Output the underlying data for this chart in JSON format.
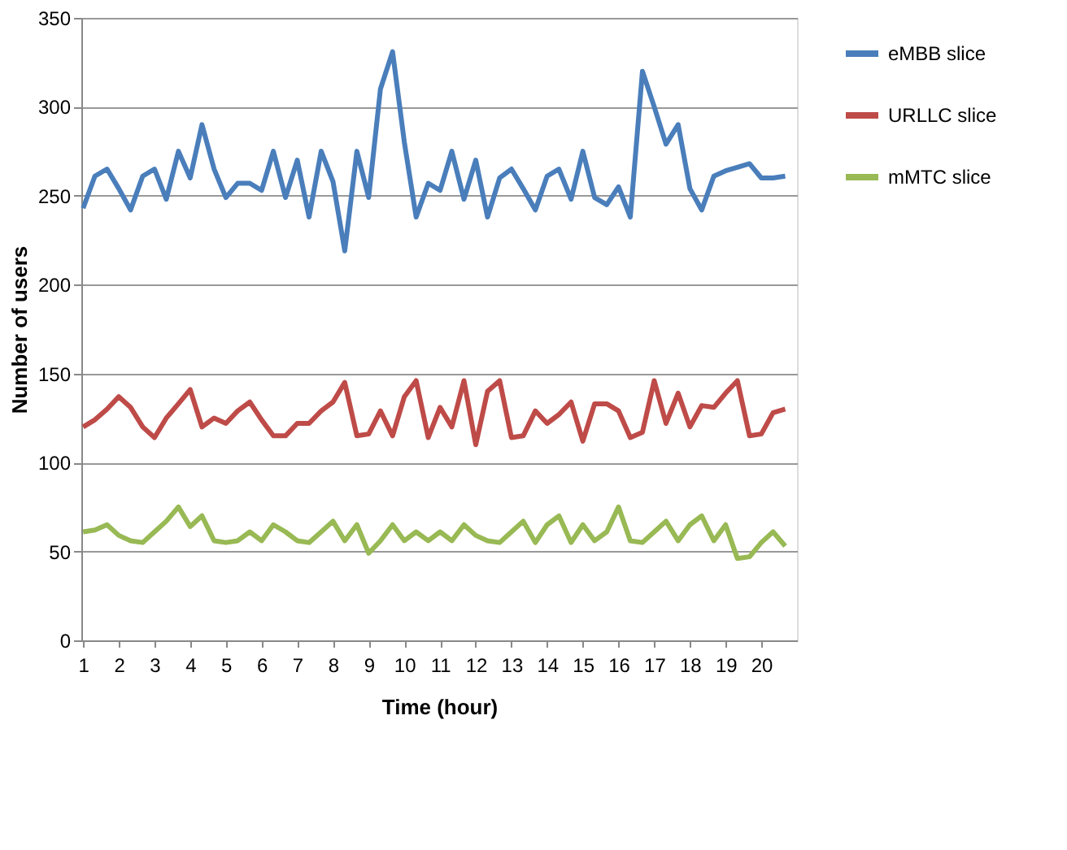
{
  "chart_data": {
    "type": "line",
    "xlabel": "Time (hour)",
    "ylabel": "Number of users",
    "x": [
      1,
      1.33,
      1.67,
      2,
      2.33,
      2.67,
      3,
      3.33,
      3.67,
      4,
      4.33,
      4.67,
      5,
      5.33,
      5.67,
      6,
      6.33,
      6.67,
      7,
      7.33,
      7.67,
      8,
      8.33,
      8.67,
      9,
      9.33,
      9.67,
      10,
      10.33,
      10.67,
      11,
      11.33,
      11.67,
      12,
      12.33,
      12.67,
      13,
      13.33,
      13.67,
      14,
      14.33,
      14.67,
      15,
      15.33,
      15.67,
      16,
      16.33,
      16.67,
      17,
      17.33,
      17.67,
      18,
      18.33,
      18.67,
      19,
      19.33,
      19.67,
      20,
      20.33,
      20.67
    ],
    "series": [
      {
        "name": "eMBB slice",
        "color": "#4a7ebb",
        "values": [
          243,
          261,
          265,
          254,
          242,
          261,
          265,
          248,
          275,
          260,
          290,
          265,
          249,
          257,
          257,
          253,
          275,
          249,
          270,
          238,
          275,
          258,
          219,
          275,
          249,
          310,
          331,
          280,
          238,
          257,
          253,
          275,
          248,
          270,
          238,
          260,
          265,
          254,
          242,
          261,
          265,
          248,
          275,
          249,
          245,
          255,
          238,
          320,
          300,
          279,
          290,
          254,
          242,
          261,
          264,
          266,
          268,
          260,
          260,
          261
        ]
      },
      {
        "name": "URLLC slice",
        "color": "#be4b48",
        "values": [
          120,
          124,
          130,
          137,
          131,
          120,
          114,
          125,
          133,
          141,
          120,
          125,
          122,
          129,
          134,
          124,
          115,
          115,
          122,
          122,
          129,
          134,
          145,
          115,
          116,
          129,
          115,
          137,
          146,
          114,
          131,
          120,
          146,
          110,
          140,
          146,
          114,
          115,
          129,
          122,
          127,
          134,
          112,
          133,
          133,
          129,
          114,
          117,
          146,
          122,
          139,
          120,
          132,
          131,
          139,
          146,
          115,
          116,
          128,
          130
        ]
      },
      {
        "name": "mMTC slice",
        "color": "#98b954",
        "values": [
          61,
          62,
          65,
          59,
          56,
          55,
          61,
          67,
          75,
          64,
          70,
          56,
          55,
          56,
          61,
          56,
          65,
          61,
          56,
          55,
          61,
          67,
          56,
          65,
          49,
          56,
          65,
          56,
          61,
          56,
          61,
          56,
          65,
          59,
          56,
          55,
          61,
          67,
          55,
          65,
          70,
          55,
          65,
          56,
          61,
          75,
          56,
          55,
          61,
          67,
          56,
          65,
          70,
          56,
          65,
          46,
          47,
          55,
          61,
          53
        ]
      }
    ],
    "xlim": [
      0.95,
      21
    ],
    "xticks": [
      1,
      2,
      3,
      4,
      5,
      6,
      7,
      8,
      9,
      10,
      11,
      12,
      13,
      14,
      15,
      16,
      17,
      18,
      19,
      20
    ],
    "ylim": [
      0,
      350
    ],
    "yticks": [
      0,
      50,
      100,
      150,
      200,
      250,
      300,
      350
    ],
    "grid": "y",
    "legend": "right",
    "marker": "none",
    "line_style": "solid"
  }
}
